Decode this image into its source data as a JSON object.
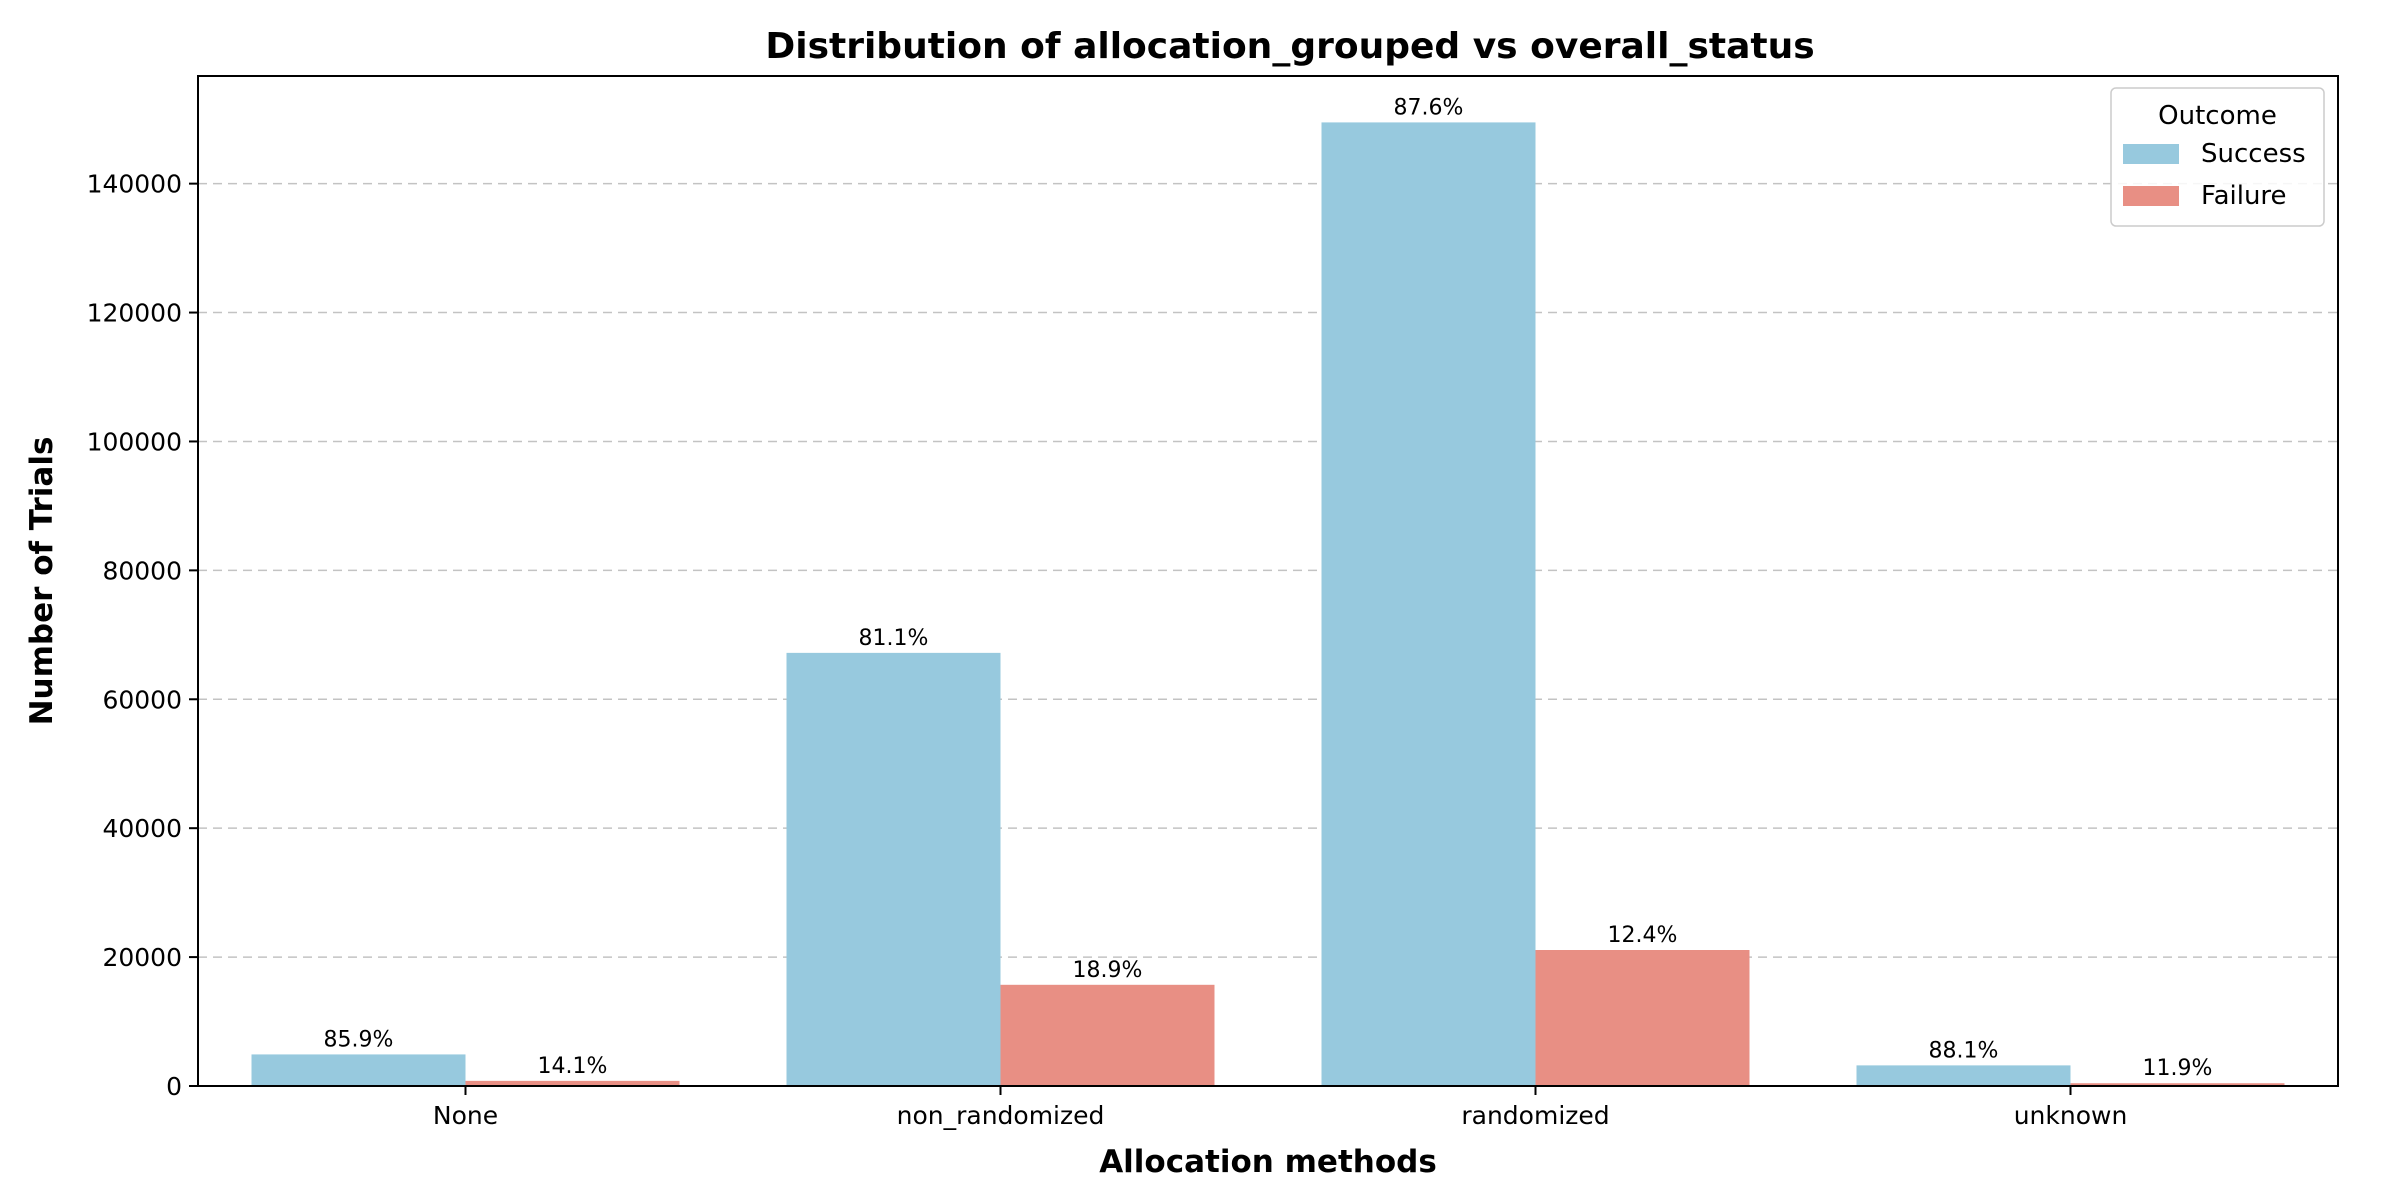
{
  "chart_data": {
    "type": "bar",
    "title": "Distribution of allocation_grouped vs overall_status",
    "xlabel": "Allocation methods",
    "ylabel": "Number of Trials",
    "categories": [
      "None",
      "non_randomized",
      "randomized",
      "unknown"
    ],
    "series": [
      {
        "name": "Success",
        "color": "#97c9de",
        "values": [
          4900,
          67200,
          149500,
          3200
        ],
        "labels": [
          "85.9%",
          "81.1%",
          "87.6%",
          "88.1%"
        ]
      },
      {
        "name": "Failure",
        "color": "#e88f84",
        "values": [
          800,
          15700,
          21100,
          430
        ],
        "labels": [
          "14.1%",
          "18.9%",
          "12.4%",
          "11.9%"
        ]
      }
    ],
    "ylim": [
      0,
      156700
    ],
    "yticks": [
      0,
      20000,
      40000,
      60000,
      80000,
      100000,
      120000,
      140000
    ],
    "grid": true,
    "legend": {
      "title": "Outcome",
      "position": "top-right"
    }
  }
}
